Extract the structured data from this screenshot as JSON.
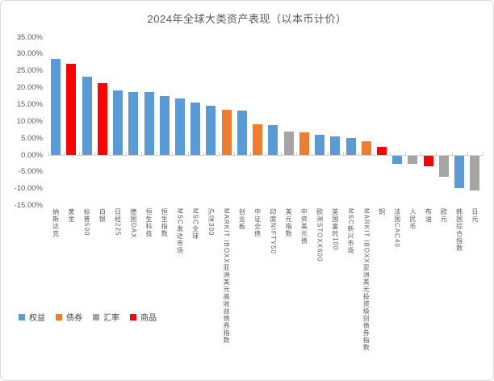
{
  "chart_data": {
    "type": "bar",
    "title": "2024年全球大类资产表现（以本币计价）",
    "xlabel": "",
    "ylabel": "",
    "ylim": [
      -15,
      35
    ],
    "y_tick_step": 5,
    "y_tick_labels": [
      "35.00%",
      "30.00%",
      "25.00%",
      "20.00%",
      "15.00%",
      "10.00%",
      "5.00%",
      "0.00%",
      "-5.00%",
      "-10.00%",
      "-15.00%"
    ],
    "grid": false,
    "legend_position": "bottom-left",
    "categories": [
      "纳斯达克",
      "黄金",
      "标普500",
      "白银",
      "日经225",
      "德国DAX",
      "恒生科技",
      "恒生指数",
      "MSC发达市场",
      "MSC全球",
      "沪深300",
      "MARKIT IBOXX亚洲美元高收益债券指数",
      "创业板",
      "中证全债",
      "印度NIFTY50",
      "美元指数",
      "中资美元债",
      "欧洲STOXX600",
      "英国富时100",
      "MSC新兴市场",
      "MARKIT IBOXX亚洲美元投资级别债券指数",
      "铜",
      "法国CAC40",
      "人民币",
      "布油",
      "欧元",
      "韩国综合指数",
      "日元"
    ],
    "values": [
      28.6,
      27.2,
      23.3,
      21.5,
      19.2,
      18.8,
      18.7,
      17.7,
      16.8,
      15.7,
      14.7,
      13.6,
      13.2,
      9.2,
      8.9,
      7.1,
      6.8,
      6.0,
      5.7,
      5.1,
      4.2,
      2.5,
      -2.3,
      -2.4,
      -3.1,
      -6.2,
      -9.7,
      -10.3
    ],
    "groups": [
      "权益",
      "商品",
      "权益",
      "商品",
      "权益",
      "权益",
      "权益",
      "权益",
      "权益",
      "权益",
      "权益",
      "债券",
      "权益",
      "债券",
      "权益",
      "汇率",
      "债券",
      "权益",
      "权益",
      "权益",
      "债券",
      "商品",
      "权益",
      "汇率",
      "商品",
      "汇率",
      "权益",
      "汇率"
    ]
  },
  "legend": {
    "items": [
      {
        "label": "权益",
        "color": "#5B9BD5"
      },
      {
        "label": "债券",
        "color": "#ED7D31"
      },
      {
        "label": "汇率",
        "color": "#A5A5A5"
      },
      {
        "label": "商品",
        "color": "#FF0000"
      }
    ]
  },
  "colors": {
    "equity": "#5B9BD5",
    "bond": "#ED7D31",
    "fx": "#A5A5A5",
    "commodity": "#FF0000",
    "axis_line": "#D2D2D2",
    "text": "#595959",
    "border": "#D9D9D9"
  }
}
